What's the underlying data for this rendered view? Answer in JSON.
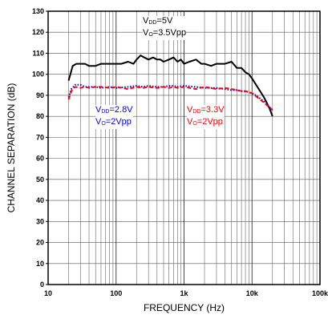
{
  "chart_data": {
    "type": "line",
    "xlabel": "FREQUENCY (Hz)",
    "ylabel": "CHANNEL SEPARATION (dB)",
    "xscale": "log",
    "xlim": [
      10,
      100000
    ],
    "ylim": [
      0,
      130
    ],
    "x_tick_labels": [
      "10",
      "100",
      "1k",
      "10k",
      "100k"
    ],
    "y_ticks": [
      0,
      10,
      20,
      30,
      40,
      50,
      60,
      70,
      80,
      90,
      100,
      110,
      120,
      130
    ],
    "grid": true,
    "series": [
      {
        "color": "#000000",
        "style": "solid",
        "x": [
          20,
          23,
          26,
          30,
          35,
          40,
          50,
          60,
          70,
          80,
          100,
          120,
          150,
          180,
          200,
          230,
          260,
          300,
          350,
          400,
          450,
          500,
          600,
          700,
          800,
          900,
          1000,
          1200,
          1500,
          1800,
          2000,
          2500,
          3000,
          3500,
          4000,
          5000,
          6000,
          7000,
          8000,
          9000,
          10000,
          12000,
          15000,
          18000,
          20000
        ],
        "y": [
          97,
          104,
          105,
          105,
          105,
          104,
          104,
          105,
          105,
          105,
          105,
          105,
          106,
          105,
          107,
          109,
          108,
          107,
          108,
          107,
          107,
          106,
          107,
          108,
          106,
          107,
          105,
          106,
          107,
          105,
          105,
          104,
          105,
          105,
          105,
          106,
          103,
          103,
          101,
          100,
          98,
          94,
          89,
          84,
          80
        ]
      },
      {
        "color": "#0000ff",
        "style": "dotted",
        "x": [
          20,
          22,
          25,
          30,
          35,
          40,
          50,
          60,
          80,
          100,
          150,
          200,
          250,
          300,
          400,
          500,
          600,
          700,
          800,
          1000,
          1500,
          2000,
          3000,
          4000,
          5000,
          6000,
          7000,
          8000,
          10000,
          12000,
          15000,
          20000
        ],
        "y": [
          89,
          93,
          95,
          95,
          94,
          94,
          94,
          93.5,
          94,
          93.5,
          94,
          94.5,
          94,
          94.5,
          94,
          94,
          94.5,
          94.5,
          94,
          94.5,
          94,
          93.5,
          93.5,
          93,
          92.5,
          92.5,
          92,
          92,
          91,
          89.5,
          87,
          83
        ]
      },
      {
        "color": "#ff0000",
        "style": "dashed",
        "x": [
          20,
          22,
          25,
          30,
          35,
          40,
          50,
          60,
          80,
          100,
          150,
          200,
          250,
          300,
          400,
          500,
          600,
          700,
          800,
          1000,
          1500,
          2000,
          3000,
          4000,
          5000,
          6000,
          7000,
          8000,
          10000,
          12000,
          15000,
          20000
        ],
        "y": [
          88,
          92,
          94,
          93.5,
          94,
          93.5,
          94,
          94,
          93.5,
          94,
          93,
          94,
          93.5,
          94,
          93.5,
          94,
          93.5,
          94,
          93.5,
          94,
          93,
          94,
          93,
          93.5,
          93,
          92.5,
          92,
          92,
          91,
          89,
          86.5,
          83
        ]
      }
    ],
    "annotations": [
      {
        "id": "vdd5",
        "color": "#000000",
        "line1_pre": "V",
        "line1_sub": "DD",
        "line1_post": "=5V",
        "line2_pre": "V",
        "line2_sub": "O",
        "line2_post": "=3.5Vpp"
      },
      {
        "id": "vdd28",
        "color": "#0000ff",
        "line1_pre": "V",
        "line1_sub": "DD",
        "line1_post": "=2.8V",
        "line2_pre": "V",
        "line2_sub": "O",
        "line2_post": "=2Vpp"
      },
      {
        "id": "vdd33",
        "color": "#ff0000",
        "line1_pre": "V",
        "line1_sub": "DD",
        "line1_post": "=3.3V",
        "line2_pre": "V",
        "line2_sub": "O",
        "line2_post": "=2Vpp"
      }
    ]
  }
}
